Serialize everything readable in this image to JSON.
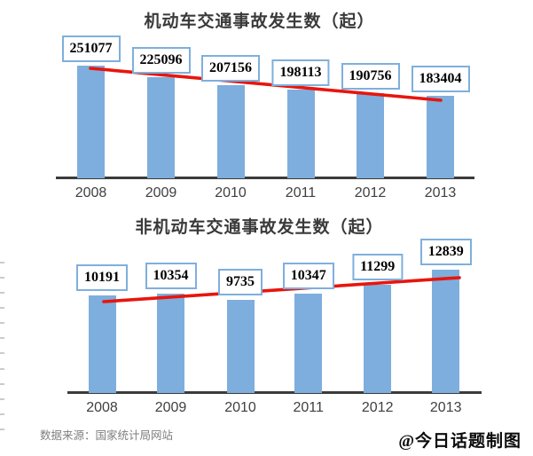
{
  "chart_data": [
    {
      "type": "bar",
      "title": "机动车交通事故发生数（起）",
      "categories": [
        "2008",
        "2009",
        "2010",
        "2011",
        "2012",
        "2013"
      ],
      "values": [
        251077,
        225096,
        207156,
        198113,
        190756,
        183404
      ],
      "data_labels": [
        251077,
        225096,
        207156,
        198113,
        190756,
        183404
      ],
      "xlabel": "",
      "ylabel": "",
      "ylim": [
        0,
        260000
      ],
      "grid": false,
      "legend": "none",
      "bar_color": "#7EAEDD",
      "label_box_border_color": "#7FAFDC",
      "trendline": {
        "shape": "decreasing",
        "color": "#E8150D"
      },
      "axis_color": "#3b3b3b"
    },
    {
      "type": "bar",
      "title": "非机动车交通事故发生数（起）",
      "categories": [
        "2008",
        "2009",
        "2010",
        "2011",
        "2012",
        "2013"
      ],
      "values": [
        10191,
        10354,
        9735,
        10347,
        11299,
        12839
      ],
      "data_labels": [
        10191,
        10354,
        9735,
        10347,
        11299,
        12839
      ],
      "xlabel": "",
      "ylabel": "",
      "ylim": [
        0,
        13500
      ],
      "grid": false,
      "legend": "none",
      "bar_color": "#7EAEDD",
      "label_box_border_color": "#7FAFDC",
      "trendline": {
        "shape": "increasing",
        "color": "#E8150D"
      },
      "axis_color": "#3b3b3b"
    }
  ],
  "footer": {
    "source": "数据来源：国家统计局网站",
    "watermark": "@今日话题制图"
  }
}
